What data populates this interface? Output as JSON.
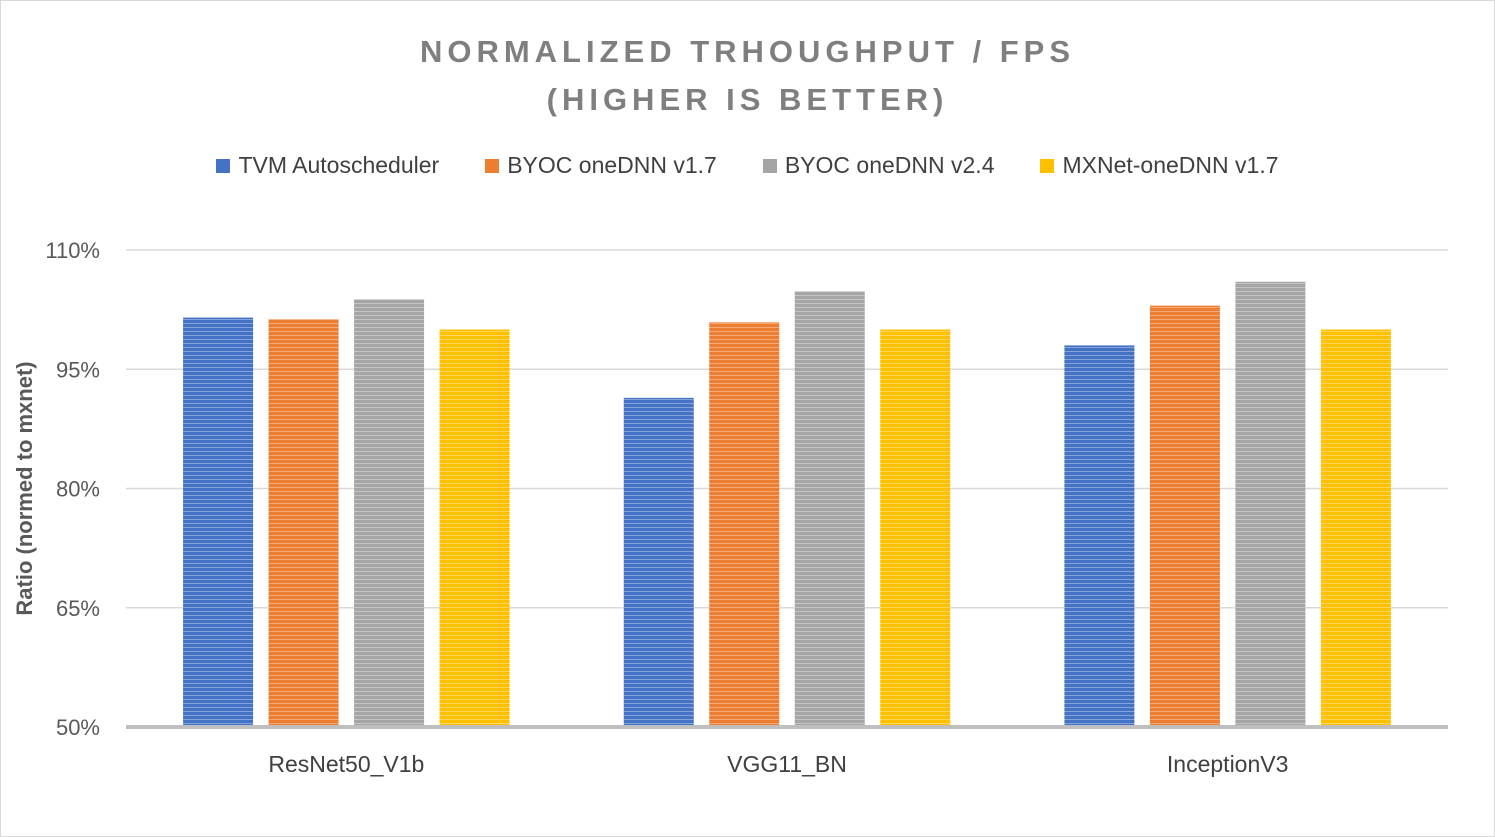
{
  "chart_data": {
    "type": "bar",
    "title_line1": "NORMALIZED TRHOUGHPUT / FPS",
    "title_line2": "(HIGHER IS BETTER)",
    "ylabel": "Ratio (normed to mxnet)",
    "xlabel": "",
    "ylim": [
      0.5,
      1.1
    ],
    "yticks": [
      0.5,
      0.65,
      0.8,
      0.95,
      1.1
    ],
    "ytick_labels": [
      "50%",
      "65%",
      "80%",
      "95%",
      "110%"
    ],
    "grid": true,
    "legend_position": "top",
    "categories": [
      "ResNet50_V1b",
      "VGG11_BN",
      "InceptionV3"
    ],
    "series": [
      {
        "name": "TVM Autoscheduler",
        "values": [
          1.015,
          0.914,
          0.98
        ],
        "color": "#4472c4"
      },
      {
        "name": "BYOC oneDNN v1.7",
        "values": [
          1.013,
          1.009,
          1.03
        ],
        "color": "#ed7d31"
      },
      {
        "name": "BYOC oneDNN v2.4",
        "values": [
          1.038,
          1.048,
          1.06
        ],
        "color": "#a5a5a5"
      },
      {
        "name": "MXNet-oneDNN v1.7",
        "values": [
          1.0,
          1.0,
          1.0
        ],
        "color": "#ffc000"
      }
    ]
  }
}
